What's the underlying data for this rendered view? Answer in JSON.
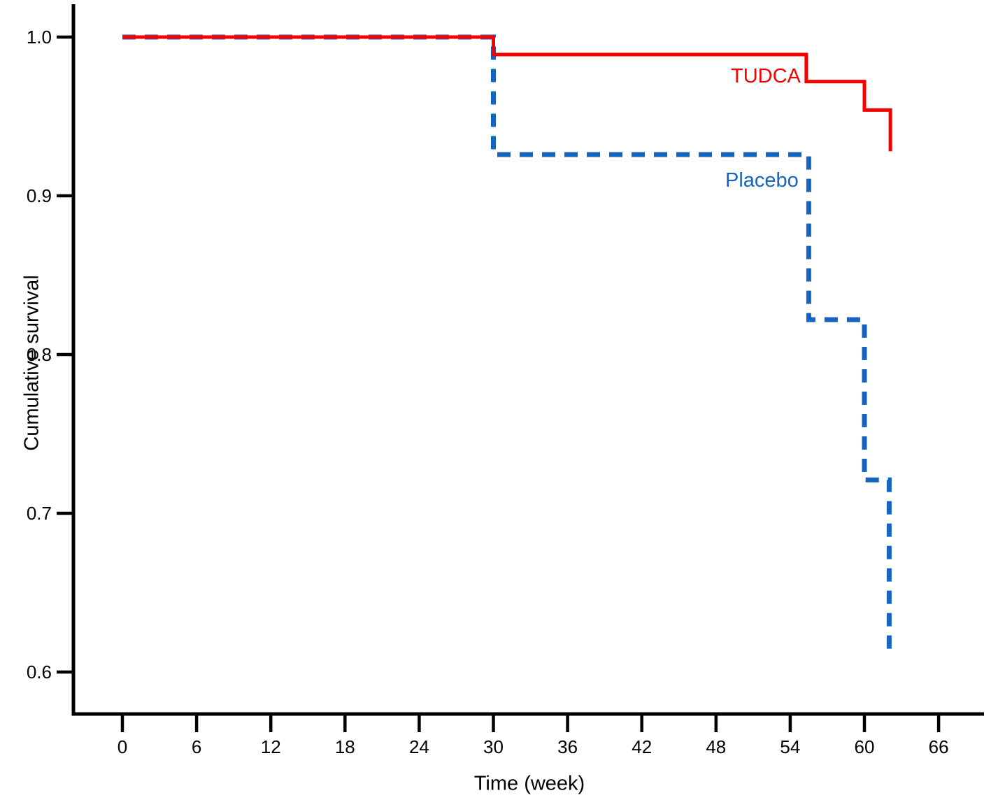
{
  "figure": {
    "background": "#ffffff",
    "axis_color": "#000000"
  },
  "chart_data": {
    "type": "line",
    "subtype": "kaplan-meier-step-curve",
    "title": "",
    "xlabel": "Time (week)",
    "ylabel": "Cumulative survival",
    "xlim": [
      -4,
      70
    ],
    "ylim": [
      0.575,
      1.02
    ],
    "x_ticks": [
      0,
      6,
      12,
      18,
      24,
      30,
      36,
      42,
      48,
      54,
      60,
      66
    ],
    "y_ticks": [
      0.6,
      0.7,
      0.8,
      0.9,
      1.0
    ],
    "grid": false,
    "legend_position": "inline-annotations",
    "series": [
      {
        "name": "TUDCA",
        "color": "#f60000",
        "line_style": "solid",
        "line_width": 5,
        "points": [
          [
            0,
            1.0
          ],
          [
            30,
            1.0
          ],
          [
            30,
            0.989
          ],
          [
            55.3,
            0.989
          ],
          [
            55.3,
            0.972
          ],
          [
            60,
            0.972
          ],
          [
            60,
            0.954
          ],
          [
            62.1,
            0.954
          ],
          [
            62.1,
            0.928
          ]
        ]
      },
      {
        "name": "Placebo",
        "color": "#1565c0",
        "line_style": "dashed",
        "line_width": 7,
        "points": [
          [
            0,
            1.0
          ],
          [
            30,
            1.0
          ],
          [
            30,
            0.926
          ],
          [
            55.5,
            0.926
          ],
          [
            55.5,
            0.822
          ],
          [
            60,
            0.822
          ],
          [
            60,
            0.721
          ],
          [
            62,
            0.721
          ],
          [
            62,
            0.613
          ]
        ]
      }
    ],
    "annotations": [
      {
        "text": "TUDCA",
        "color": "#f60000",
        "anchor_week": 52,
        "anchor_value": 0.965
      },
      {
        "text": "Placebo",
        "color": "#1565c0",
        "anchor_week": 51.5,
        "anchor_value": 0.9
      }
    ]
  }
}
